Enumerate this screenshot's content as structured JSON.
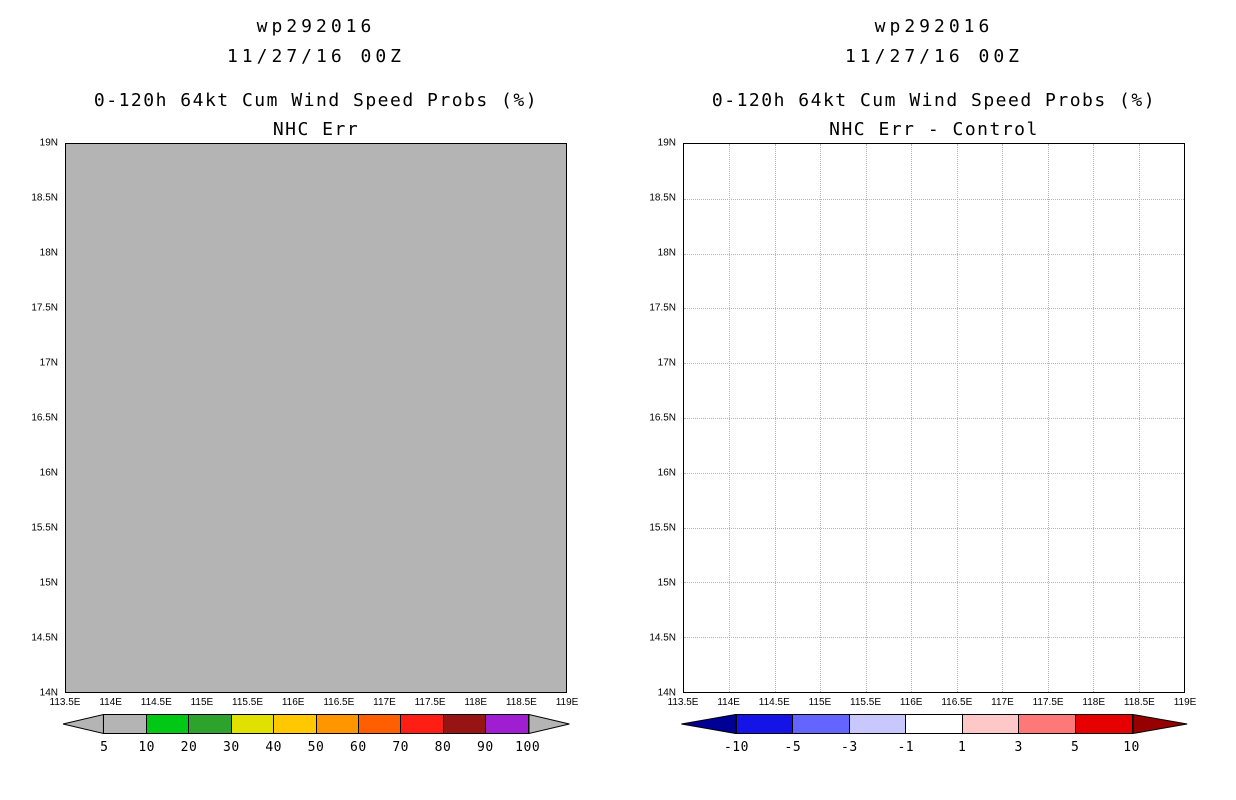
{
  "figure": {
    "background": "#ffffff"
  },
  "panels": [
    {
      "name": "nhc-err",
      "storm_id": "wp292016",
      "init_time": "11/27/16 00Z",
      "plot_title": "0-120h 64kt Cum Wind Speed Probs (%)",
      "plot_subtitle": "NHC Err",
      "map": {
        "fill_color": "#b4b4b4",
        "grid_dotted": false,
        "grid_color": "#b4b4b4",
        "y_ticks": [
          "19N",
          "18.5N",
          "18N",
          "17.5N",
          "17N",
          "16.5N",
          "16N",
          "15.5N",
          "15N",
          "14.5N",
          "14N"
        ],
        "x_ticks": [
          "113.5E",
          "114E",
          "114.5E",
          "115E",
          "115.5E",
          "116E",
          "116.5E",
          "117E",
          "117.5E",
          "118E",
          "118.5E",
          "119E"
        ]
      },
      "colorbar": {
        "tick_labels": [
          "5",
          "10",
          "20",
          "30",
          "40",
          "50",
          "60",
          "70",
          "80",
          "90",
          "100"
        ],
        "arrow_left_color": "#b4b4b4",
        "arrow_right_color": "#b4b4b4",
        "cell_colors": [
          "#b4b4b4",
          "#00c814",
          "#2da32d",
          "#e1e100",
          "#ffc800",
          "#ff9600",
          "#ff5f00",
          "#ff1e14",
          "#961414",
          "#a01ed2"
        ]
      }
    },
    {
      "name": "nhc-err-minus-control",
      "storm_id": "wp292016",
      "init_time": "11/27/16 00Z",
      "plot_title": "0-120h 64kt Cum Wind Speed Probs (%)",
      "plot_subtitle": "NHC Err - Control",
      "map": {
        "fill_color": "#ffffff",
        "grid_dotted": true,
        "grid_color": "#b4b4b4",
        "y_ticks": [
          "19N",
          "18.5N",
          "18N",
          "17.5N",
          "17N",
          "16.5N",
          "16N",
          "15.5N",
          "15N",
          "14.5N",
          "14N"
        ],
        "x_ticks": [
          "113.5E",
          "114E",
          "114.5E",
          "115E",
          "115.5E",
          "116E",
          "116.5E",
          "117E",
          "117.5E",
          "118E",
          "118.5E",
          "119E"
        ]
      },
      "colorbar": {
        "tick_labels": [
          "-10",
          "-5",
          "-3",
          "-1",
          "1",
          "3",
          "5",
          "10"
        ],
        "arrow_left_color": "#000096",
        "arrow_right_color": "#960000",
        "cell_colors": [
          "#1414e6",
          "#6464ff",
          "#c8c8ff",
          "#ffffff",
          "#ffc8c8",
          "#ff7878",
          "#e60000"
        ]
      }
    }
  ],
  "chart_data": [
    {
      "type": "heatmap",
      "storm_id": "wp292016",
      "init_time": "11/27/16 00Z",
      "title": "0-120h 64kt Cum Wind Speed Probs (%)",
      "subtitle": "NHC Err",
      "xlim": [
        113.5,
        119.0
      ],
      "ylim": [
        14.0,
        19.0
      ],
      "x_tick_labels": [
        "113.5E",
        "114E",
        "114.5E",
        "115E",
        "115.5E",
        "116E",
        "116.5E",
        "117E",
        "117.5E",
        "118E",
        "118.5E",
        "119E"
      ],
      "y_tick_labels": [
        "19N",
        "18.5N",
        "18N",
        "17.5N",
        "17N",
        "16.5N",
        "16N",
        "15.5N",
        "15N",
        "14.5N",
        "14N"
      ],
      "shading_levels": [
        5,
        10,
        20,
        30,
        40,
        50,
        60,
        70,
        80,
        90,
        100
      ],
      "palette": [
        "#b4b4b4",
        "#b4b4b4",
        "#00c814",
        "#2da32d",
        "#e1e100",
        "#ffc800",
        "#ff9600",
        "#ff5f00",
        "#ff1e14",
        "#961414",
        "#a01ed2",
        "#b4b4b4"
      ],
      "field_summary": "Entire displayed domain shaded uniform gray (all values in lowest bin, below 5%)",
      "grid": false,
      "legend_position": "bottom"
    },
    {
      "type": "heatmap",
      "storm_id": "wp292016",
      "init_time": "11/27/16 00Z",
      "title": "0-120h 64kt Cum Wind Speed Probs (%)",
      "subtitle": "NHC Err - Control",
      "xlim": [
        113.5,
        119.0
      ],
      "ylim": [
        14.0,
        19.0
      ],
      "x_tick_labels": [
        "113.5E",
        "114E",
        "114.5E",
        "115E",
        "115.5E",
        "116E",
        "116.5E",
        "117E",
        "117.5E",
        "118E",
        "118.5E",
        "119E"
      ],
      "y_tick_labels": [
        "19N",
        "18.5N",
        "18N",
        "17.5N",
        "17N",
        "16.5N",
        "16N",
        "15.5N",
        "15N",
        "14.5N",
        "14N"
      ],
      "shading_levels": [
        -10,
        -5,
        -3,
        -1,
        1,
        3,
        5,
        10
      ],
      "palette": [
        "#000096",
        "#1414e6",
        "#6464ff",
        "#c8c8ff",
        "#ffffff",
        "#ffc8c8",
        "#ff7878",
        "#e60000",
        "#960000"
      ],
      "field_summary": "No shaded differences visible; blank white map with dotted 0.5-degree graticule",
      "grid": true,
      "legend_position": "bottom"
    }
  ]
}
